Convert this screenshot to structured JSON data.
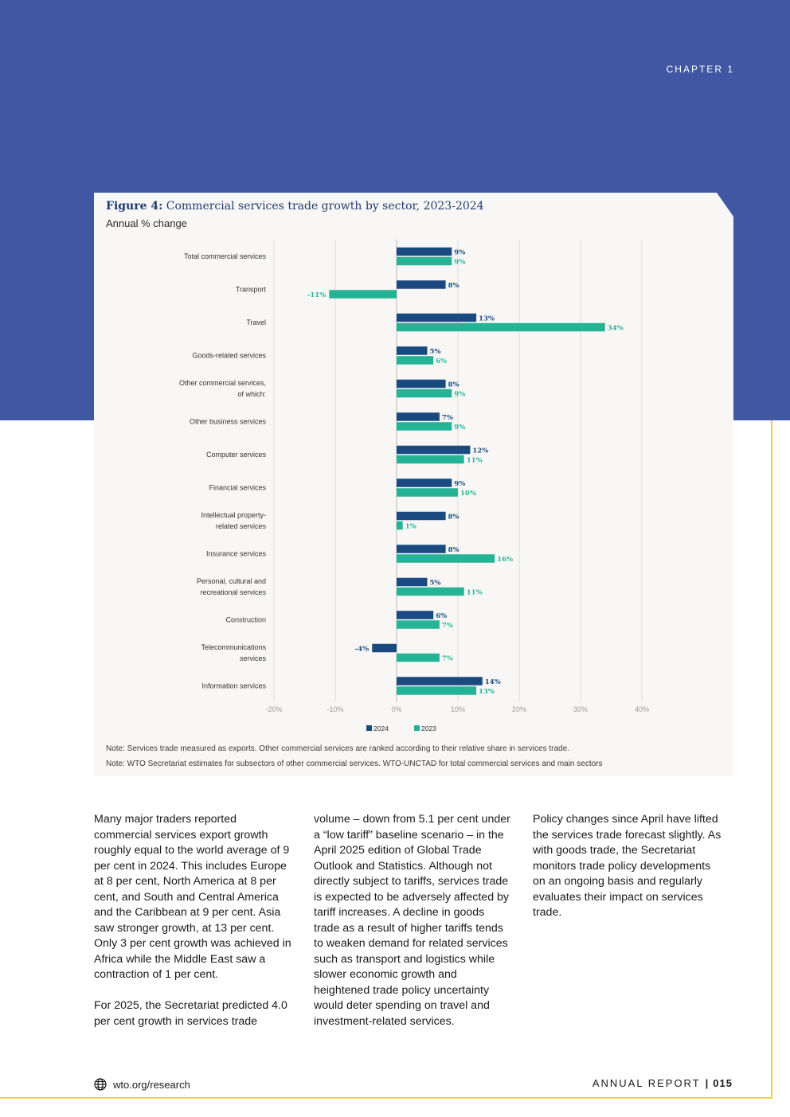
{
  "header": {
    "chapter": "CHAPTER 1"
  },
  "figure": {
    "title_bold": "Figure 4:",
    "title_rest": " Commercial services trade growth by sector, 2023-2024",
    "subtitle": "Annual % change",
    "notes": [
      "Note: Services trade measured as exports. Other commercial services are ranked according to their relative share in services trade.",
      "Note: WTO Secretariat estimates for subsectors of other commercial services. WTO-UNCTAD for total commercial services and main sectors"
    ]
  },
  "chart_data": {
    "type": "bar",
    "orientation": "horizontal",
    "categories": [
      [
        "Total commercial services"
      ],
      [
        "Transport"
      ],
      [
        "Travel"
      ],
      [
        "Goods-related services"
      ],
      [
        "Other commercial services,",
        "of which:"
      ],
      [
        "Other business services"
      ],
      [
        "Computer services"
      ],
      [
        "Financial services"
      ],
      [
        "Intellectual property-",
        "related services"
      ],
      [
        "Insurance services"
      ],
      [
        "Personal, cultural and",
        "recreational services"
      ],
      [
        "Construction"
      ],
      [
        "Telecommunications",
        "services"
      ],
      [
        "Information services"
      ]
    ],
    "series": [
      {
        "name": "2024",
        "color": "#1a4a80",
        "values": [
          9,
          8,
          13,
          5,
          8,
          7,
          12,
          9,
          8,
          8,
          5,
          6,
          -4,
          14
        ]
      },
      {
        "name": "2023",
        "color": "#25b395",
        "values": [
          9,
          -11,
          34,
          6,
          9,
          9,
          11,
          10,
          1,
          16,
          11,
          7,
          7,
          13
        ]
      }
    ],
    "xlim": [
      -20,
      40
    ],
    "xticks": [
      "-20%",
      "-10%",
      "0%",
      "10%",
      "20%",
      "30%",
      "40%"
    ],
    "xtick_values": [
      -20,
      -10,
      0,
      10,
      20,
      30,
      40
    ],
    "grid": true,
    "legend": "bottom-center"
  },
  "columns": [
    [
      "Many major traders reported commercial services export growth roughly equal to the world average of 9 per cent in 2024. This includes Europe at 8 per cent, North America at 8 per cent, and South and Central America and the Caribbean at 9 per cent. Asia saw stronger growth, at 13 per cent. Only 3 per cent growth was achieved in Africa while the Middle East saw a contraction of 1 per cent.",
      "For 2025, the Secretariat predicted 4.0 per cent growth in services trade"
    ],
    [
      "volume – down from 5.1 per cent under a “low tariff” baseline scenario – in the April 2025 edition of Global Trade Outlook and Statistics. Although not directly subject to tariffs, services trade is expected to be adversely affected by tariff increases. A decline in goods trade as a result of higher tariffs tends to weaken demand for related services such as transport and logistics while slower economic growth and heightened trade policy uncertainty would deter spending on travel and investment-related services."
    ],
    [
      "Policy changes since April have lifted the services trade forecast slightly. As with goods trade, the Secretariat monitors trade policy developments on an ongoing basis and regularly evaluates their impact on services trade."
    ]
  ],
  "footer": {
    "link": "wto.org/research",
    "report_label": "ANNUAL REPORT",
    "separator": "|",
    "page_number": "015",
    "globe_icon": "globe-icon"
  }
}
